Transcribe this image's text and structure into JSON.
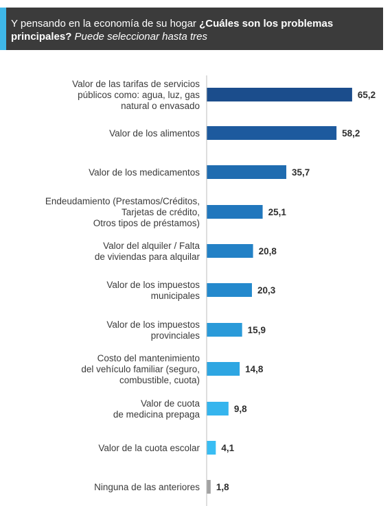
{
  "header": {
    "question_normal": "Y pensando en la economía de su hogar ",
    "question_bold": "¿Cuáles son los problemas principales?",
    "question_italic": " Puede seleccionar hasta tres"
  },
  "chart_data": {
    "type": "bar",
    "orientation": "horizontal",
    "xlim": [
      0,
      70
    ],
    "grid": false,
    "categories": [
      [
        "Valor de las tarifas de servicios",
        "públicos como: agua, luz, gas",
        "natural o envasado"
      ],
      [
        "Valor de los alimentos"
      ],
      [
        "Valor de los medicamentos"
      ],
      [
        "Endeudamiento (Prestamos/Créditos,",
        "Tarjetas de crédito,",
        "Otros tipos de préstamos)"
      ],
      [
        "Valor del alquiler / Falta",
        "de viviendas para alquilar"
      ],
      [
        "Valor de los impuestos",
        "municipales"
      ],
      [
        "Valor de los impuestos",
        "provinciales"
      ],
      [
        "Costo del mantenimiento",
        "del vehículo familiar (seguro,",
        "combustible, cuota)"
      ],
      [
        "Valor de cuota",
        "de medicina prepaga"
      ],
      [
        "Valor de la cuota escolar"
      ],
      [
        "Ninguna de las anteriores"
      ]
    ],
    "values": [
      65.2,
      58.2,
      35.7,
      25.1,
      20.8,
      20.3,
      15.9,
      14.8,
      9.8,
      4.1,
      1.8
    ],
    "value_labels": [
      "65,2",
      "58,2",
      "35,7",
      "25,1",
      "20,8",
      "20,3",
      "15,9",
      "14,8",
      "9,8",
      "4,1",
      "1,8"
    ],
    "colors": [
      "#1b4d8c",
      "#1d5a9e",
      "#1f6cb0",
      "#2177bd",
      "#2381c6",
      "#2489cd",
      "#2a9ad9",
      "#2ea6e2",
      "#35b5ee",
      "#39bdf3",
      "#a3a3a3"
    ]
  }
}
